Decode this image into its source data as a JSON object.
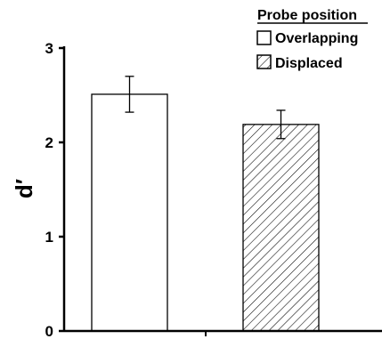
{
  "chart_data": {
    "type": "bar",
    "categories": [
      "Overlapping",
      "Displaced"
    ],
    "values": [
      2.51,
      2.19
    ],
    "errors": [
      0.19,
      0.15
    ],
    "fills": [
      "plain",
      "hatched"
    ],
    "title": "",
    "xlabel": "",
    "ylabel": "d′",
    "ylim": [
      0,
      3
    ],
    "yticks": [
      "0",
      "1",
      "2",
      "3"
    ],
    "legend": {
      "title": "Probe position",
      "placement": "top-right",
      "entries": [
        "Overlapping",
        "Displaced"
      ]
    },
    "grid": false,
    "colors": {
      "axis": "#000000",
      "bar_fill": "#ffffff",
      "hatch": "#000000"
    }
  }
}
